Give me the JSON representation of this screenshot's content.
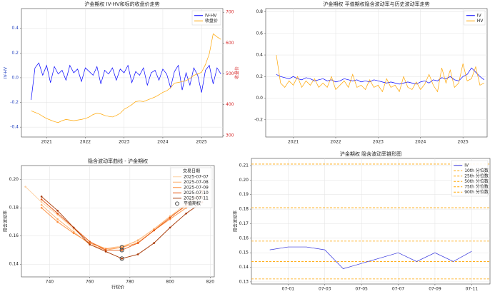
{
  "chart_data": [
    {
      "type": "line",
      "title": "沪金期权 IV-HV和标的收盘价走势",
      "ylabel": "IV-HV",
      "y2label": "收盘价",
      "ycolor": "#1f3fbf",
      "y2color": "#d62728",
      "grid": true,
      "legend": "upper right",
      "x": [
        2020.6,
        2020.7,
        2020.8,
        2020.9,
        2021.0,
        2021.1,
        2021.2,
        2021.3,
        2021.4,
        2021.5,
        2021.6,
        2021.7,
        2021.8,
        2021.9,
        2022.0,
        2022.1,
        2022.2,
        2022.3,
        2022.4,
        2022.5,
        2022.6,
        2022.7,
        2022.8,
        2022.9,
        2023.0,
        2023.1,
        2023.2,
        2023.3,
        2023.4,
        2023.5,
        2023.6,
        2023.7,
        2023.8,
        2023.9,
        2024.0,
        2024.1,
        2024.2,
        2024.3,
        2024.4,
        2024.5,
        2024.6,
        2024.7,
        2024.8,
        2024.9,
        2025.0,
        2025.1,
        2025.2,
        2025.3,
        2025.4,
        2025.5
      ],
      "xlim": [
        2020.35,
        2025.55
      ],
      "xticks": [
        2021,
        2022,
        2023,
        2024,
        2025
      ],
      "ylim": [
        -0.48,
        0.56
      ],
      "yticks": [
        -0.4,
        -0.2,
        {
          "value": 0,
          "label": "0.0"
        },
        0.2,
        0.4
      ],
      "y2lim": [
        295,
        712
      ],
      "y2ticks": [
        300,
        400,
        500,
        600,
        700
      ],
      "series": [
        {
          "name": "IV-HV",
          "color": "#0000ff",
          "values": [
            -0.18,
            0.08,
            0.12,
            0.02,
            0.1,
            -0.04,
            0.09,
            0.03,
            0.06,
            -0.02,
            0.1,
            0.04,
            0.07,
            -0.03,
            0.08,
            0.05,
            0.02,
            0.09,
            -0.05,
            0.06,
            0.03,
            0.08,
            -0.02,
            0.07,
            0.04,
            0.1,
            -0.04,
            0.05,
            0.02,
            0.08,
            -0.06,
            0.04,
            0.06,
            -0.02,
            0.07,
            0.03,
            -0.08,
            0.05,
            0.1,
            -0.1,
            0.04,
            -0.06,
            0.08,
            0.02,
            -0.12,
            0.06,
            0.1,
            -0.05,
            0.08,
            0.03
          ]
        },
        {
          "name": "收盘价",
          "color": "#ffa500",
          "axis": "y2",
          "values": [
            380,
            375,
            370,
            362,
            355,
            350,
            345,
            342,
            348,
            352,
            350,
            348,
            350,
            352,
            355,
            360,
            368,
            372,
            370,
            365,
            362,
            360,
            365,
            372,
            385,
            392,
            400,
            410,
            412,
            410,
            415,
            420,
            425,
            432,
            440,
            445,
            455,
            470,
            472,
            475,
            478,
            485,
            495,
            500,
            505,
            530,
            565,
            630,
            620,
            612
          ]
        }
      ]
    },
    {
      "type": "line",
      "title": "沪金期权 平值期权隐含波动率与历史波动率走势",
      "grid": true,
      "legend": "upper right",
      "x": [
        2020.6,
        2020.7,
        2020.8,
        2020.9,
        2021.0,
        2021.1,
        2021.2,
        2021.3,
        2021.4,
        2021.5,
        2021.6,
        2021.7,
        2021.8,
        2021.9,
        2022.0,
        2022.1,
        2022.2,
        2022.3,
        2022.4,
        2022.5,
        2022.6,
        2022.7,
        2022.8,
        2022.9,
        2023.0,
        2023.1,
        2023.2,
        2023.3,
        2023.4,
        2023.5,
        2023.6,
        2023.7,
        2023.8,
        2023.9,
        2024.0,
        2024.1,
        2024.2,
        2024.3,
        2024.4,
        2024.5,
        2024.6,
        2024.7,
        2024.8,
        2024.9,
        2025.0,
        2025.1,
        2025.2,
        2025.3,
        2025.4,
        2025.5
      ],
      "xlim": [
        2020.35,
        2025.57
      ],
      "xticks": [
        2021,
        2022,
        2023,
        2024,
        2025
      ],
      "ylim": [
        -0.36,
        0.83
      ],
      "yticks": [
        -0.2,
        {
          "value": 0,
          "label": "0.0"
        },
        0.2,
        0.4,
        0.6,
        0.8
      ],
      "series": [
        {
          "name": "IV",
          "color": "#0000ff",
          "values": [
            0.22,
            0.2,
            0.19,
            0.18,
            0.2,
            0.18,
            0.17,
            0.19,
            0.18,
            0.16,
            0.17,
            0.18,
            0.16,
            0.17,
            0.15,
            0.16,
            0.18,
            0.17,
            0.16,
            0.17,
            0.15,
            0.16,
            0.15,
            0.17,
            0.16,
            0.15,
            0.14,
            0.15,
            0.14,
            0.13,
            0.14,
            0.15,
            0.14,
            0.13,
            0.15,
            0.16,
            0.14,
            0.17,
            0.16,
            0.19,
            0.18,
            0.2,
            0.17,
            0.16,
            0.2,
            0.22,
            0.28,
            0.24,
            0.2,
            0.17
          ]
        },
        {
          "name": "HV",
          "color": "#ffa500",
          "values": [
            0.4,
            0.14,
            0.1,
            0.16,
            0.12,
            0.2,
            0.1,
            0.16,
            0.12,
            0.18,
            0.1,
            0.14,
            0.1,
            0.2,
            0.08,
            0.12,
            0.16,
            0.1,
            0.22,
            0.1,
            0.12,
            0.08,
            0.17,
            0.1,
            0.12,
            0.06,
            0.18,
            0.1,
            0.12,
            0.06,
            0.2,
            0.1,
            0.08,
            0.15,
            0.08,
            0.13,
            0.22,
            0.12,
            0.06,
            0.28,
            0.14,
            0.26,
            0.1,
            0.14,
            0.32,
            0.16,
            0.18,
            0.29,
            0.12,
            0.14
          ]
        }
      ]
    },
    {
      "type": "line",
      "markers": true,
      "title": "隐含波动率曲线 - 沪金期权",
      "xlabel": "行权价",
      "ylabel": "隐含波动率",
      "grid": true,
      "legend": "upper right",
      "legend_title": "交易日期",
      "xlim": [
        726,
        822
      ],
      "xticks": [
        740,
        760,
        780,
        800,
        820
      ],
      "ylim": [
        0.131,
        0.21
      ],
      "yticks": [
        0.14,
        0.16,
        0.18,
        {
          "value": 0.2,
          "label": "0.20"
        }
      ],
      "series": [
        {
          "name": "2025-07-07",
          "color": "#fdd0a2",
          "x": [
            728,
            736,
            744,
            752,
            760,
            768,
            776,
            784,
            792,
            800,
            808,
            816
          ],
          "values": [
            0.195,
            0.184,
            0.175,
            0.165,
            0.156,
            0.151,
            0.153,
            0.156,
            0.164,
            0.174,
            0.183,
            0.192
          ]
        },
        {
          "name": "2025-07-08",
          "color": "#fdae6b",
          "x": [
            736,
            744,
            752,
            760,
            768,
            776,
            784,
            792,
            800,
            808,
            816
          ],
          "values": [
            0.182,
            0.172,
            0.163,
            0.154,
            0.15,
            0.152,
            0.157,
            0.165,
            0.174,
            0.181,
            0.19
          ]
        },
        {
          "name": "2025-07-09",
          "color": "#fd8d3c",
          "x": [
            736,
            744,
            752,
            760,
            768,
            776,
            784,
            792,
            800,
            808,
            816
          ],
          "values": [
            0.18,
            0.17,
            0.162,
            0.155,
            0.151,
            0.152,
            0.155,
            0.164,
            0.172,
            0.18,
            0.188
          ]
        },
        {
          "name": "2025-07-10",
          "color": "#e6550d",
          "x": [
            736,
            744,
            752,
            760,
            768,
            776,
            784,
            792,
            800,
            808,
            816
          ],
          "values": [
            0.186,
            0.176,
            0.166,
            0.156,
            0.15,
            0.15,
            0.155,
            0.164,
            0.173,
            0.182,
            0.192
          ]
        },
        {
          "name": "2025-07-11",
          "color": "#a63603",
          "x": [
            736,
            744,
            752,
            760,
            768,
            776,
            784,
            792,
            800,
            808,
            816
          ],
          "values": [
            0.188,
            0.178,
            0.166,
            0.154,
            0.149,
            0.144,
            0.147,
            0.155,
            0.166,
            0.176,
            0.184
          ]
        }
      ],
      "atm": {
        "name": "平值期权",
        "color": "#222222",
        "x": [
          776,
          776,
          776
        ],
        "values": [
          0.152,
          0.15,
          0.144
        ]
      }
    },
    {
      "type": "line",
      "title": "沪金期权 隐含波动率锥形图",
      "ylabel": "隐含波动率",
      "grid": true,
      "legend": "upper right",
      "x": [
        "06-30",
        "07-01",
        "07-02",
        "07-03",
        "07-04",
        "07-07",
        "07-08",
        "07-09",
        "07-10",
        "07-11"
      ],
      "xlim": [
        "06-29",
        "07-12"
      ],
      "xticks": [
        "07-01",
        "07-03",
        "07-05",
        "07-07",
        "07-09",
        "07-11"
      ],
      "ylim": [
        0.1285,
        0.2149
      ],
      "yticks": [
        0.13,
        0.14,
        0.15,
        0.16,
        0.17,
        0.18,
        0.19,
        {
          "value": 0.2,
          "label": "0.20"
        },
        0.21
      ],
      "series": [
        {
          "name": "IV",
          "color": "#3333dd",
          "values": [
            0.152,
            0.154,
            0.154,
            0.152,
            0.139,
            0.15,
            0.144,
            0.15,
            0.144,
            0.151
          ]
        }
      ],
      "hlines": [
        {
          "name": "10th 分位数",
          "color": "#ffa500",
          "value": 0.132
        },
        {
          "name": "25th 分位数",
          "color": "#ffa500",
          "value": 0.144
        },
        {
          "name": "50th 分位数",
          "color": "#ffa500",
          "value": 0.158
        },
        {
          "name": "75th 分位数",
          "color": "#ffa500",
          "value": 0.181
        },
        {
          "name": "90th 分位数",
          "color": "#ffa500",
          "value": 0.211
        }
      ]
    }
  ]
}
